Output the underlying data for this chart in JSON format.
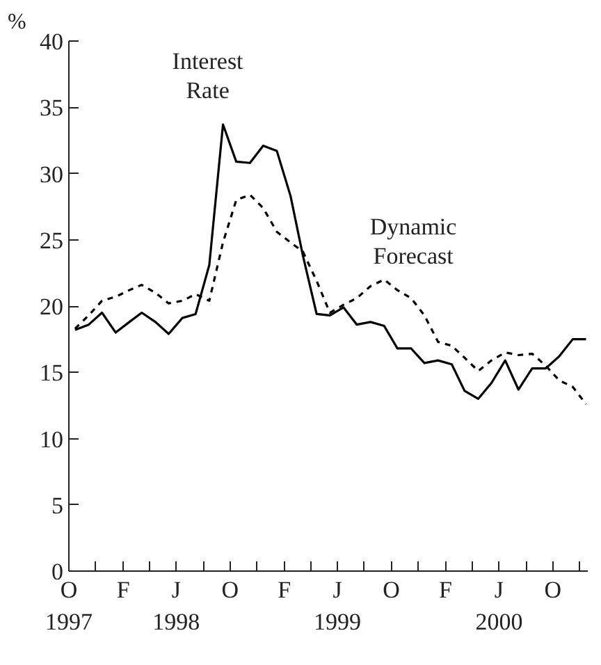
{
  "chart_data": {
    "type": "line",
    "ylabel": "%",
    "x": [
      "1997-10-15",
      "1997-11-15",
      "1997-12-15",
      "1998-01-15",
      "1998-02-15",
      "1998-03-15",
      "1998-04-15",
      "1998-05-15",
      "1998-06-15",
      "1998-07-15",
      "1998-08-15",
      "1998-09-15",
      "1998-10-15",
      "1998-11-15",
      "1998-12-15",
      "1999-01-15",
      "1999-02-15",
      "1999-03-15",
      "1999-04-15",
      "1999-05-15",
      "1999-06-15",
      "1999-07-15",
      "1999-08-15",
      "1999-09-15",
      "1999-10-15",
      "1999-11-15",
      "1999-12-15",
      "2000-01-15",
      "2000-02-15",
      "2000-03-15",
      "2000-04-15",
      "2000-05-15",
      "2000-06-15",
      "2000-07-15",
      "2000-08-15",
      "2000-09-15",
      "2000-10-15",
      "2000-11-15",
      "2000-12-15"
    ],
    "series": [
      {
        "color": "#000000",
        "line_style": "solid",
        "values": [
          18.2,
          18.6,
          19.5,
          18.0,
          18.8,
          19.5,
          18.8,
          17.9,
          19.1,
          19.4,
          23.1,
          33.7,
          30.9,
          30.8,
          32.1,
          31.7,
          28.3,
          23.8,
          19.4,
          19.3,
          19.9,
          18.6,
          18.8,
          18.5,
          16.8,
          16.8,
          15.7,
          15.9,
          15.6,
          13.6,
          13.0,
          14.2,
          15.9,
          13.7,
          15.3,
          15.3,
          16.2,
          17.5,
          17.5
        ]
      },
      {
        "color": "#000000",
        "line_style": "dashed",
        "values": [
          18.3,
          19.3,
          20.4,
          20.7,
          21.2,
          21.6,
          21.0,
          20.2,
          20.4,
          20.9,
          20.4,
          24.8,
          28.0,
          28.4,
          27.4,
          25.6,
          24.8,
          24.1,
          21.9,
          19.5,
          20.1,
          20.6,
          21.5,
          22.0,
          21.2,
          20.6,
          19.3,
          17.3,
          17.0,
          16.1,
          15.1,
          15.9,
          16.5,
          16.3,
          16.4,
          15.5,
          14.4,
          13.9,
          12.6
        ]
      }
    ],
    "annotations": [
      {
        "text": "Interest Rate",
        "x": "1998-09-15",
        "y": 33.7
      },
      {
        "text": "Dynamic Forecast",
        "x": "1999-12-15",
        "y": 19.3
      }
    ],
    "xlim": [
      "1997-10",
      "2000-12-19"
    ],
    "ylim": [
      0,
      40
    ],
    "xticks": [
      {
        "value": "1997-10",
        "label": "O\n1997"
      },
      {
        "value": "1997-12",
        "label": null
      },
      {
        "value": "1998-02",
        "label": "F"
      },
      {
        "value": "1998-04",
        "label": null
      },
      {
        "value": "1998-06",
        "label": "J\n1998"
      },
      {
        "value": "1998-08",
        "label": null
      },
      {
        "value": "1998-10",
        "label": "O"
      },
      {
        "value": "1998-12",
        "label": null
      },
      {
        "value": "1999-02",
        "label": "F"
      },
      {
        "value": "1999-04",
        "label": null
      },
      {
        "value": "1999-06",
        "label": "J\n1999"
      },
      {
        "value": "1999-08",
        "label": null
      },
      {
        "value": "1999-10",
        "label": "O"
      },
      {
        "value": "1999-12",
        "label": null
      },
      {
        "value": "2000-02",
        "label": "F"
      },
      {
        "value": "2000-04",
        "label": null
      },
      {
        "value": "2000-06",
        "label": "J\n2000"
      },
      {
        "value": "2000-08",
        "label": null
      },
      {
        "value": "2000-10",
        "label": "O"
      },
      {
        "value": "2000-12",
        "label": null
      }
    ],
    "yticks": [
      0,
      5,
      10,
      15,
      20,
      25,
      30,
      35,
      40
    ],
    "grid": false,
    "marker": "none"
  }
}
